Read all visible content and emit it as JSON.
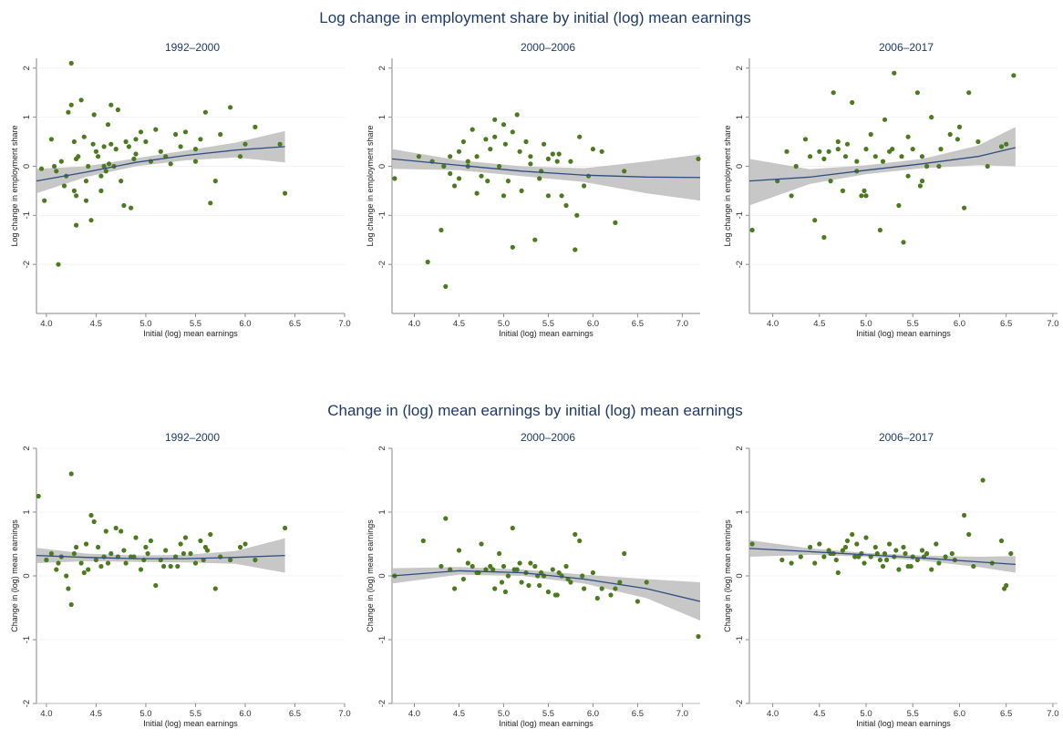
{
  "figure": {
    "rows": [
      {
        "title": "Log change in employment share by initial (log) mean earnings",
        "panels": [
          {
            "subtitle": "1992–2000"
          },
          {
            "subtitle": "2000–2006"
          },
          {
            "subtitle": "2006–2017"
          }
        ]
      },
      {
        "title": "Change in (log) mean earnings by initial (log) mean earnings",
        "panels": [
          {
            "subtitle": "1992–2000"
          },
          {
            "subtitle": "2000–2006"
          },
          {
            "subtitle": "2006–2017"
          }
        ]
      }
    ]
  },
  "colors": {
    "points": "#4e7a1f",
    "fit_line": "#2e4f7e",
    "ci_band": "#bdbdbd",
    "axis": "#8a8a8a",
    "title": "#1f3a68"
  },
  "chart_data": [
    {
      "type": "scatter",
      "title": "1992–2000",
      "xlabel": "Initial (log) mean earnings",
      "ylabel": "Log change in employment share",
      "xlim": [
        3.9,
        7.0
      ],
      "ylim": [
        -3.0,
        2.2
      ],
      "xticks": [
        "4.0",
        "4.5",
        "5.0",
        "5.5",
        "6.0",
        "6.5",
        "7.0"
      ],
      "yticks": [
        "-2",
        "-1",
        "0",
        "1",
        "2"
      ],
      "x": [
        4.25,
        4.12,
        3.95,
        3.98,
        4.05,
        4.1,
        4.15,
        4.2,
        4.22,
        4.25,
        4.28,
        4.3,
        4.32,
        4.35,
        4.38,
        4.4,
        4.42,
        4.45,
        4.48,
        4.5,
        4.52,
        4.55,
        4.58,
        4.6,
        4.62,
        4.65,
        4.68,
        4.7,
        4.72,
        4.75,
        4.78,
        4.8,
        4.85,
        4.9,
        4.95,
        5.0,
        5.05,
        5.1,
        5.2,
        5.3,
        5.4,
        5.5,
        5.6,
        5.65,
        5.75,
        5.85,
        6.0,
        6.1,
        6.35,
        6.4,
        4.08,
        4.18,
        4.3,
        4.47,
        4.63,
        4.88,
        5.15,
        5.35,
        5.55,
        5.7,
        5.95,
        4.4,
        4.65,
        4.3,
        4.55,
        4.83,
        4.58,
        4.9,
        5.25,
        5.5,
        4.28
      ],
      "y": [
        2.1,
        -2.0,
        -0.05,
        -0.7,
        0.55,
        -0.1,
        0.1,
        -0.2,
        1.1,
        1.25,
        0.5,
        -1.2,
        0.2,
        1.35,
        0.6,
        -0.3,
        0.0,
        -1.1,
        1.05,
        0.3,
        0.2,
        -0.5,
        0.4,
        -0.1,
        0.85,
        1.25,
        0.0,
        0.35,
        1.15,
        -0.3,
        -0.8,
        0.5,
        -0.85,
        0.55,
        0.7,
        0.5,
        0.1,
        0.75,
        0.2,
        0.65,
        0.7,
        0.35,
        1.1,
        -0.75,
        0.65,
        1.2,
        0.45,
        0.8,
        0.45,
        -0.55,
        0.0,
        -0.4,
        -0.6,
        0.45,
        0.05,
        0.15,
        0.3,
        0.4,
        0.55,
        -0.3,
        0.2,
        -0.7,
        0.45,
        0.15,
        -0.2,
        0.4,
        0.0,
        0.25,
        0.05,
        0.1,
        -0.5
      ],
      "fit": {
        "x": [
          3.9,
          4.4,
          4.9,
          5.4,
          5.9,
          6.4
        ],
        "y": [
          -0.3,
          -0.12,
          0.08,
          0.22,
          0.33,
          0.4
        ]
      },
      "ci": {
        "lower": [
          -0.55,
          -0.22,
          0.0,
          0.12,
          0.18,
          0.08
        ],
        "upper": [
          -0.05,
          0.0,
          0.16,
          0.32,
          0.48,
          0.72
        ]
      }
    },
    {
      "type": "scatter",
      "title": "2000–2006",
      "xlabel": "Initial (log) mean earnings",
      "ylabel": "Log change in employment share",
      "xlim": [
        3.75,
        7.2
      ],
      "ylim": [
        -3.0,
        2.2
      ],
      "xticks": [
        "4.0",
        "4.5",
        "5.0",
        "5.5",
        "6.0",
        "6.5",
        "7.0"
      ],
      "yticks": [
        "-2",
        "-1",
        "0",
        "1",
        "2"
      ],
      "x": [
        3.78,
        4.15,
        4.3,
        4.35,
        4.33,
        4.4,
        4.45,
        4.5,
        4.55,
        4.6,
        4.65,
        4.7,
        4.75,
        4.8,
        4.85,
        4.9,
        4.95,
        5.0,
        5.05,
        5.1,
        5.15,
        5.2,
        5.25,
        5.3,
        5.35,
        5.4,
        5.45,
        5.5,
        5.55,
        5.6,
        5.65,
        5.75,
        5.8,
        5.85,
        5.9,
        6.0,
        6.1,
        6.25,
        6.35,
        7.18,
        4.05,
        4.2,
        4.6,
        4.82,
        5.02,
        5.18,
        5.42,
        5.62,
        5.82,
        4.5,
        4.9,
        5.3,
        5.7,
        4.7,
        5.0,
        5.5,
        5.1,
        4.4,
        5.95
      ],
      "y": [
        -0.25,
        -1.95,
        -1.3,
        -2.45,
        0.0,
        0.2,
        -0.4,
        0.3,
        0.5,
        0.1,
        0.75,
        0.2,
        -0.2,
        0.55,
        0.35,
        0.95,
        0.0,
        0.85,
        -0.3,
        -1.65,
        1.05,
        -0.5,
        0.5,
        0.2,
        -1.5,
        -0.25,
        0.45,
        -0.6,
        0.25,
        0.1,
        -0.6,
        0.1,
        -1.7,
        0.6,
        -0.4,
        0.35,
        0.3,
        -1.15,
        -0.1,
        0.15,
        0.2,
        0.1,
        0.0,
        -0.3,
        0.45,
        0.3,
        -0.1,
        0.25,
        -1.0,
        -0.25,
        0.6,
        0.05,
        -0.8,
        -0.55,
        -0.6,
        0.15,
        0.7,
        -0.15,
        -0.2
      ],
      "fit": {
        "x": [
          3.75,
          4.5,
          5.2,
          5.9,
          6.6,
          7.2
        ],
        "y": [
          0.15,
          0.02,
          -0.1,
          -0.18,
          -0.22,
          -0.23
        ]
      },
      "ci": {
        "lower": [
          -0.05,
          -0.08,
          -0.2,
          -0.32,
          -0.55,
          -0.7
        ],
        "upper": [
          0.35,
          0.12,
          0.0,
          -0.04,
          0.1,
          0.24
        ]
      }
    },
    {
      "type": "scatter",
      "title": "2006–2017",
      "xlabel": "Initial (log) mean earnings",
      "ylabel": "Log change in employment share",
      "xlim": [
        3.75,
        7.05
      ],
      "ylim": [
        -3.0,
        2.2
      ],
      "xticks": [
        "4.0",
        "4.5",
        "5.0",
        "5.5",
        "6.0",
        "6.5",
        "7.0"
      ],
      "yticks": [
        "-2",
        "-1",
        "0",
        "1",
        "2"
      ],
      "x": [
        3.78,
        4.05,
        4.15,
        4.25,
        4.35,
        4.45,
        4.5,
        4.55,
        4.6,
        4.65,
        4.7,
        4.75,
        4.8,
        4.85,
        4.9,
        4.95,
        5.0,
        5.05,
        5.1,
        5.15,
        5.2,
        5.25,
        5.3,
        5.35,
        5.4,
        5.45,
        5.5,
        5.55,
        5.6,
        5.65,
        5.7,
        5.8,
        5.9,
        6.0,
        6.05,
        6.1,
        6.2,
        6.3,
        6.45,
        6.5,
        6.58,
        4.4,
        4.62,
        4.78,
        4.98,
        5.18,
        5.38,
        5.58,
        5.78,
        5.98,
        4.2,
        4.55,
        4.9,
        5.28,
        5.6,
        4.7,
        5.0,
        5.45
      ],
      "y": [
        -1.3,
        -0.3,
        0.3,
        0.0,
        0.55,
        -1.1,
        0.3,
        -1.45,
        0.3,
        1.5,
        0.35,
        -0.5,
        0.45,
        1.3,
        0.1,
        -0.6,
        0.35,
        0.65,
        0.2,
        -1.3,
        0.95,
        0.3,
        1.9,
        -0.8,
        -1.55,
        0.6,
        0.35,
        1.5,
        0.2,
        0.0,
        1.0,
        0.35,
        0.65,
        0.8,
        -0.85,
        1.5,
        0.5,
        0.0,
        0.4,
        0.45,
        1.85,
        0.2,
        -0.3,
        0.2,
        -0.5,
        0.1,
        0.2,
        -0.4,
        0.0,
        0.55,
        -0.6,
        0.15,
        -0.1,
        0.35,
        -0.3,
        0.5,
        -0.6,
        -0.2
      ],
      "fit": {
        "x": [
          3.75,
          4.4,
          5.0,
          5.6,
          6.2,
          6.6
        ],
        "y": [
          -0.3,
          -0.22,
          -0.08,
          0.05,
          0.2,
          0.38
        ]
      },
      "ci": {
        "lower": [
          -0.8,
          -0.36,
          -0.16,
          -0.04,
          0.02,
          0.0
        ],
        "upper": [
          0.15,
          -0.06,
          0.02,
          0.15,
          0.42,
          0.8
        ]
      }
    },
    {
      "type": "scatter",
      "title": "1992–2000",
      "xlabel": "Initial (log) mean earnings",
      "ylabel": "Change in (log) mean earnings",
      "xlim": [
        3.9,
        7.0
      ],
      "ylim": [
        -2.0,
        2.0
      ],
      "xticks": [
        "4.0",
        "4.5",
        "5.0",
        "5.5",
        "6.0",
        "6.5",
        "7.0"
      ],
      "yticks": [
        "-2",
        "-1",
        "0",
        "1",
        "2"
      ],
      "x": [
        3.92,
        4.25,
        4.45,
        4.48,
        4.25,
        4.6,
        4.7,
        4.75,
        4.9,
        5.0,
        5.05,
        5.2,
        5.4,
        5.55,
        5.65,
        6.0,
        6.4,
        4.0,
        4.05,
        4.1,
        4.15,
        4.2,
        4.3,
        4.35,
        4.4,
        4.5,
        4.55,
        4.65,
        4.8,
        4.85,
        4.95,
        5.1,
        5.15,
        5.25,
        5.3,
        5.35,
        5.45,
        5.5,
        5.6,
        5.7,
        5.75,
        5.85,
        5.95,
        6.1,
        4.22,
        4.38,
        4.58,
        4.78,
        4.98,
        5.18,
        5.38,
        5.58,
        4.12,
        4.52,
        4.72,
        5.02,
        5.32,
        4.42,
        4.62,
        4.88,
        5.62,
        4.28
      ],
      "y": [
        1.25,
        1.6,
        0.95,
        0.85,
        -0.45,
        0.7,
        0.75,
        0.7,
        0.6,
        0.45,
        0.55,
        0.4,
        0.6,
        0.55,
        0.65,
        0.5,
        0.75,
        0.25,
        0.35,
        0.1,
        0.3,
        0.0,
        0.45,
        0.2,
        0.5,
        0.25,
        0.15,
        0.35,
        0.2,
        0.3,
        0.1,
        -0.15,
        0.25,
        0.15,
        0.3,
        0.5,
        0.35,
        0.2,
        0.45,
        -0.2,
        0.3,
        0.25,
        0.45,
        0.25,
        -0.2,
        0.05,
        0.3,
        0.4,
        0.25,
        0.15,
        0.35,
        0.25,
        0.2,
        0.45,
        0.3,
        0.35,
        0.15,
        0.1,
        0.2,
        0.3,
        0.4,
        0.35
      ],
      "fit": {
        "x": [
          3.9,
          4.4,
          4.9,
          5.4,
          5.9,
          6.4
        ],
        "y": [
          0.32,
          0.29,
          0.27,
          0.27,
          0.29,
          0.32
        ]
      },
      "ci": {
        "lower": [
          0.2,
          0.23,
          0.22,
          0.21,
          0.19,
          0.05
        ],
        "upper": [
          0.44,
          0.35,
          0.32,
          0.33,
          0.39,
          0.59
        ]
      }
    },
    {
      "type": "scatter",
      "title": "2000–2006",
      "xlabel": "Initial (log) mean earnings",
      "ylabel": "Change in (log) mean earnings",
      "xlim": [
        3.75,
        7.2
      ],
      "ylim": [
        -2.0,
        2.0
      ],
      "xticks": [
        "4.0",
        "4.5",
        "5.0",
        "5.5",
        "6.0",
        "6.5",
        "7.0"
      ],
      "yticks": [
        "-2",
        "-1",
        "0",
        "1",
        "2"
      ],
      "x": [
        3.78,
        4.1,
        4.35,
        4.3,
        4.5,
        4.6,
        4.7,
        4.75,
        4.8,
        4.85,
        4.9,
        4.95,
        5.0,
        5.05,
        5.1,
        5.15,
        5.2,
        5.25,
        5.3,
        5.35,
        5.4,
        5.45,
        5.5,
        5.55,
        5.6,
        5.65,
        5.7,
        5.75,
        5.8,
        5.85,
        5.9,
        6.0,
        6.1,
        6.2,
        6.3,
        6.35,
        6.5,
        6.6,
        7.18,
        4.4,
        4.55,
        4.65,
        4.88,
        5.02,
        5.18,
        5.28,
        5.42,
        5.58,
        5.72,
        5.88,
        6.05,
        4.45,
        4.72,
        4.98,
        5.12,
        5.38,
        5.62,
        6.25
      ],
      "y": [
        0.0,
        0.55,
        0.9,
        0.15,
        0.4,
        0.2,
        0.05,
        0.5,
        0.1,
        0.15,
        -0.2,
        0.35,
        0.15,
        0.0,
        0.75,
        0.1,
        -0.1,
        0.05,
        0.2,
        0.15,
        -0.15,
        0.0,
        -0.25,
        0.1,
        -0.3,
        0.0,
        0.15,
        -0.1,
        0.65,
        0.55,
        -0.2,
        0.05,
        -0.2,
        -0.3,
        -0.1,
        0.35,
        -0.4,
        -0.1,
        -0.95,
        0.1,
        -0.05,
        0.15,
        0.1,
        -0.25,
        0.2,
        -0.15,
        0.05,
        -0.3,
        -0.05,
        0.0,
        -0.35,
        -0.2,
        0.05,
        -0.1,
        0.1,
        0.0,
        0.05,
        -0.2
      ],
      "fit": {
        "x": [
          3.75,
          4.5,
          5.2,
          5.9,
          6.6,
          7.2
        ],
        "y": [
          0.0,
          0.08,
          0.05,
          -0.05,
          -0.2,
          -0.4
        ]
      },
      "ci": {
        "lower": [
          -0.12,
          0.02,
          0.0,
          -0.12,
          -0.35,
          -0.7
        ],
        "upper": [
          0.12,
          0.14,
          0.1,
          0.02,
          -0.05,
          -0.1
        ]
      }
    },
    {
      "type": "scatter",
      "title": "2006–2017",
      "xlabel": "Initial (log) mean earnings",
      "ylabel": "Change in (log) mean earnings",
      "xlim": [
        3.75,
        7.05
      ],
      "ylim": [
        -2.0,
        2.0
      ],
      "xticks": [
        "4.0",
        "4.5",
        "5.0",
        "5.5",
        "6.0",
        "6.5",
        "7.0"
      ],
      "yticks": [
        "-2",
        "-1",
        "0",
        "1",
        "2"
      ],
      "x": [
        3.78,
        4.1,
        4.2,
        4.4,
        4.5,
        4.55,
        4.6,
        4.65,
        4.7,
        4.75,
        4.8,
        4.85,
        4.9,
        4.95,
        5.0,
        5.05,
        5.1,
        5.15,
        5.2,
        5.25,
        5.3,
        5.35,
        5.4,
        5.45,
        5.5,
        5.55,
        5.6,
        5.65,
        5.7,
        5.75,
        5.85,
        5.95,
        6.05,
        6.1,
        6.25,
        6.45,
        6.5,
        6.55,
        6.48,
        4.3,
        4.45,
        4.62,
        4.78,
        4.88,
        4.98,
        5.12,
        5.22,
        5.32,
        5.48,
        5.62,
        5.78,
        5.92,
        6.15,
        6.35,
        4.68,
        4.92,
        5.18,
        5.42
      ],
      "y": [
        0.5,
        0.25,
        0.2,
        0.45,
        0.5,
        0.3,
        0.4,
        0.35,
        0.05,
        0.4,
        0.55,
        0.65,
        0.5,
        0.35,
        0.6,
        0.3,
        0.45,
        0.25,
        0.35,
        0.5,
        0.3,
        0.1,
        0.45,
        0.15,
        0.3,
        0.25,
        0.4,
        0.35,
        0.1,
        0.5,
        0.3,
        0.25,
        0.95,
        0.65,
        1.5,
        0.55,
        -0.15,
        0.35,
        -0.2,
        0.3,
        0.2,
        0.35,
        0.45,
        0.3,
        0.2,
        0.35,
        0.25,
        0.4,
        0.15,
        0.3,
        0.2,
        0.35,
        0.15,
        0.2,
        0.25,
        0.3,
        0.15,
        0.35
      ],
      "fit": {
        "x": [
          3.75,
          4.4,
          5.0,
          5.6,
          6.2,
          6.6
        ],
        "y": [
          0.43,
          0.38,
          0.33,
          0.28,
          0.22,
          0.18
        ]
      },
      "ci": {
        "lower": [
          0.3,
          0.33,
          0.3,
          0.24,
          0.14,
          0.05
        ],
        "upper": [
          0.56,
          0.43,
          0.36,
          0.32,
          0.3,
          0.31
        ]
      }
    }
  ]
}
